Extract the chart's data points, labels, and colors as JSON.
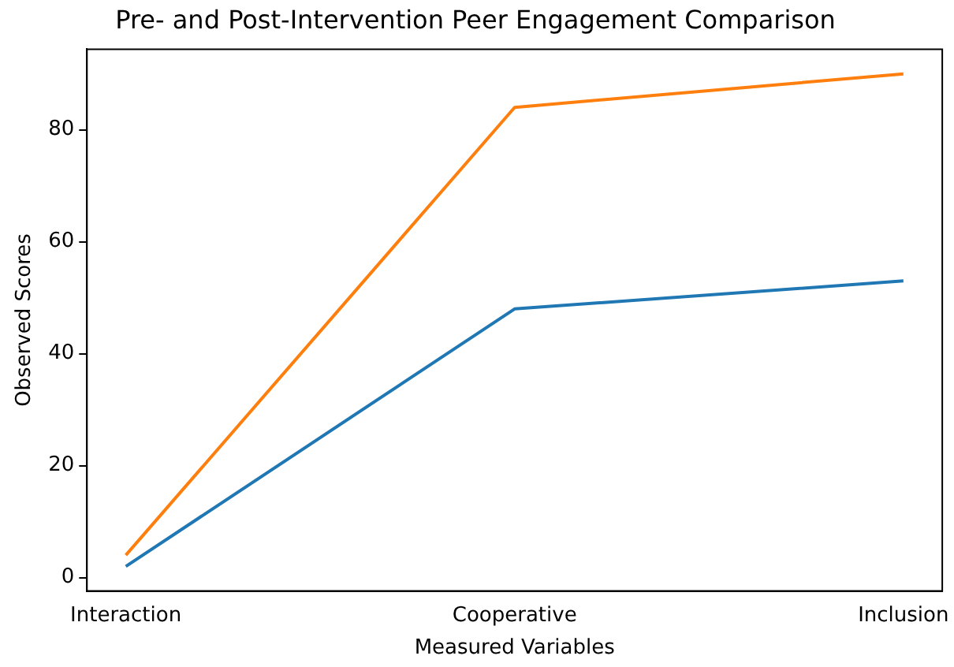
{
  "chart_data": {
    "type": "line",
    "title": "Pre- and Post-Intervention Peer Engagement Comparison",
    "xlabel": "Measured Variables",
    "ylabel": "Observed Scores",
    "categories": [
      "Interaction",
      "Cooperative",
      "Inclusion"
    ],
    "series": [
      {
        "color": "#1f77b4",
        "values": [
          2,
          48,
          53
        ]
      },
      {
        "color": "#ff7f0e",
        "values": [
          4,
          84,
          90
        ]
      }
    ],
    "ylim": [
      -2.4,
      94.4
    ],
    "yticks": [
      0,
      20,
      40,
      60,
      80
    ],
    "grid": false,
    "legend": false,
    "marker": "none",
    "line_style": "solid"
  }
}
